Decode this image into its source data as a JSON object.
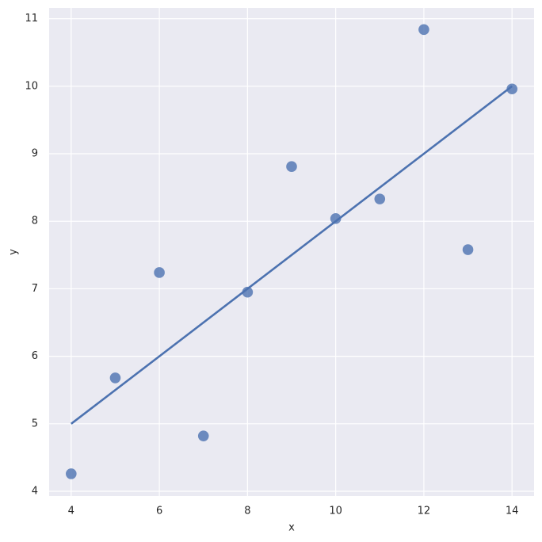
{
  "chart_data": {
    "type": "scatter",
    "x_label": "x",
    "y_label": "y",
    "series": [
      {
        "kind": "points",
        "color": "#4c72b0",
        "x": [
          10,
          8,
          13,
          9,
          11,
          14,
          6,
          4,
          12,
          7,
          5
        ],
        "values": [
          8.04,
          6.95,
          7.58,
          8.81,
          8.33,
          9.96,
          7.24,
          4.26,
          10.84,
          4.82,
          5.68
        ]
      },
      {
        "kind": "line",
        "color": "#4c72b0",
        "x": [
          4,
          14
        ],
        "values": [
          5,
          10
        ]
      }
    ],
    "xlim": [
      3.5,
      14.5
    ],
    "ylim": [
      3.93,
      11.16
    ],
    "xticks": [
      4,
      6,
      8,
      10,
      12,
      14
    ],
    "yticks": [
      4,
      5,
      6,
      7,
      8,
      9,
      10,
      11
    ],
    "grid": true
  }
}
